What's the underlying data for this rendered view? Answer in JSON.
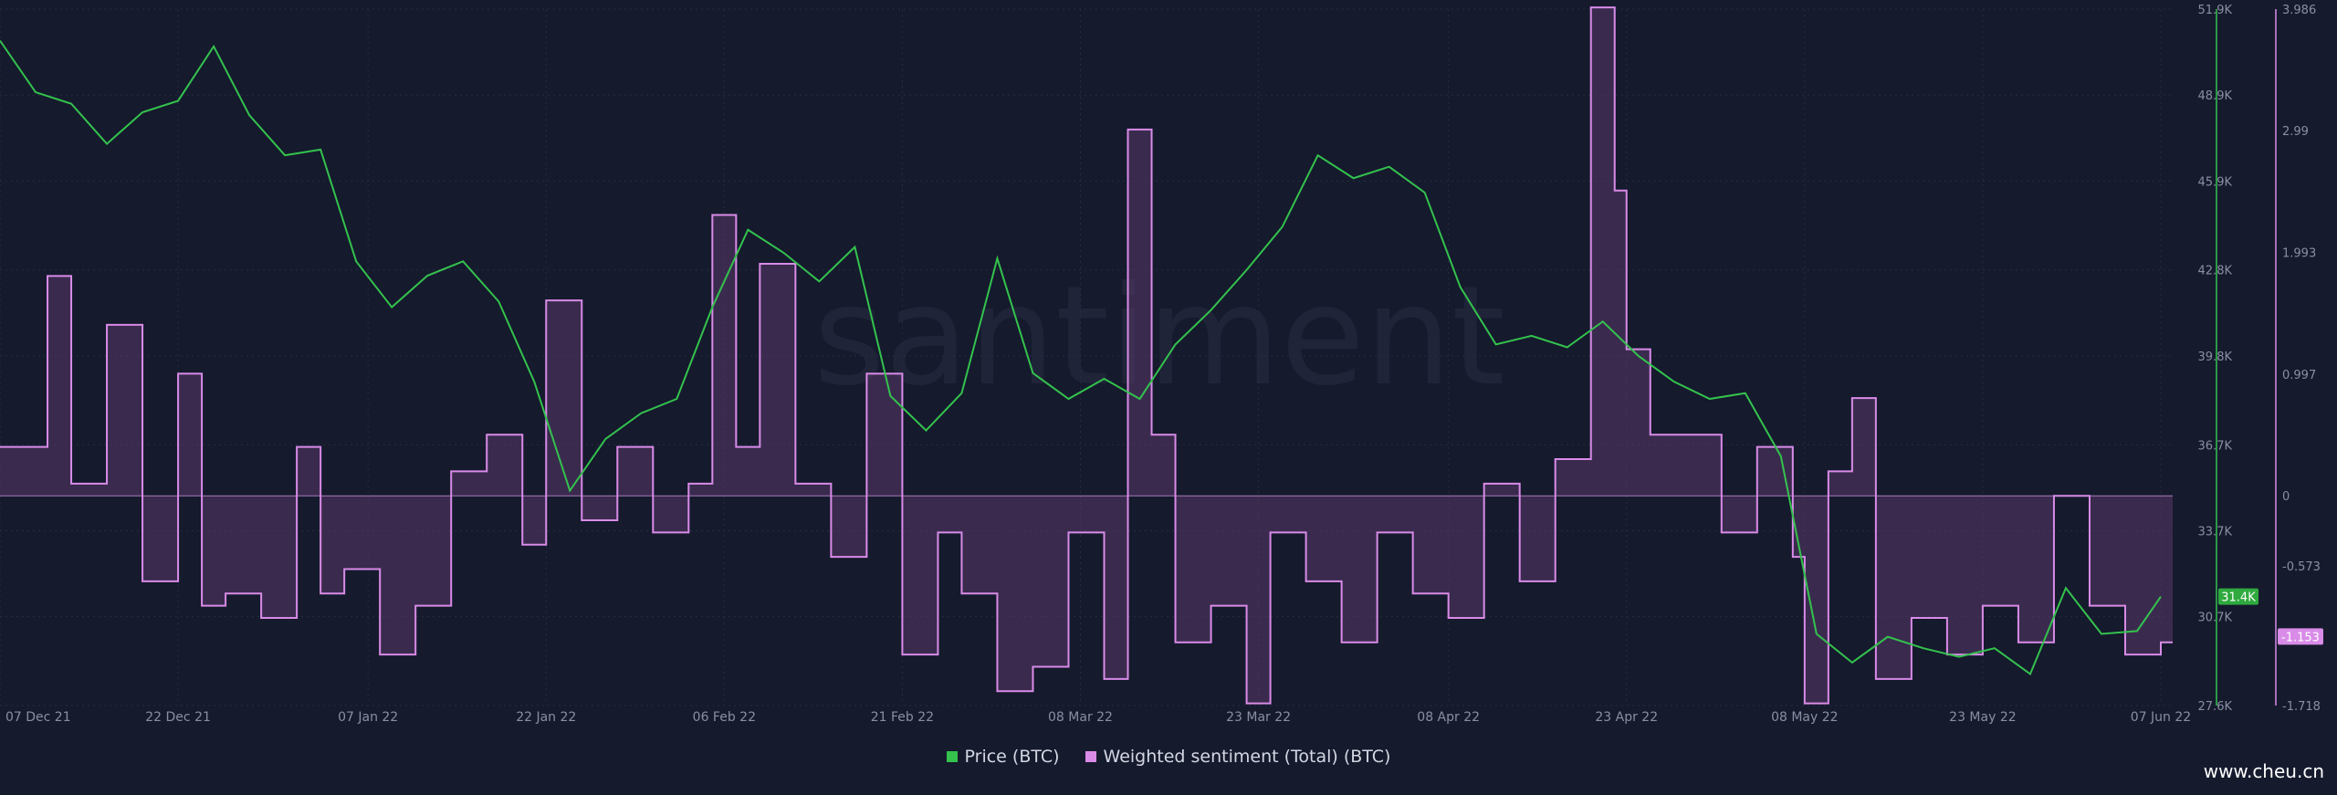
{
  "colors": {
    "price": "#34c24d",
    "sentiment": "#d98be8",
    "sentiment_fill": "#5a3a6a",
    "grid": "#262c42",
    "background": "#151a2d",
    "price_badge": "#2faa3e",
    "sentiment_badge": "#d98be8"
  },
  "watermark": "santiment",
  "site_mark": "www.cheu.cn",
  "chart_data": {
    "type": "line",
    "title": "",
    "x_ticks": [
      "07 Dec 21",
      "22 Dec 21",
      "07 Jan 22",
      "22 Jan 22",
      "06 Feb 22",
      "21 Feb 22",
      "08 Mar 22",
      "23 Mar 22",
      "08 Apr 22",
      "23 Apr 22",
      "08 May 22",
      "23 May 22",
      "07 Jun 22"
    ],
    "x_range": [
      "2021-12-07",
      "2022-06-08"
    ],
    "price_axis": {
      "ticks": [
        "51.9K",
        "48.9K",
        "45.9K",
        "42.8K",
        "39.8K",
        "36.7K",
        "33.7K",
        "30.7K",
        "27.6K"
      ],
      "range": [
        27600,
        51900
      ]
    },
    "sentiment_axis": {
      "ticks": [
        "3.986",
        "2.99",
        "1.993",
        "0.997",
        "0",
        "-0.573",
        "-1.153",
        "-1.718"
      ],
      "range": [
        -1.718,
        3.986
      ]
    },
    "grid": true,
    "legend_position": "bottom-center",
    "legend": [
      "Price (BTC)",
      "Weighted sentiment (Total) (BTC)"
    ],
    "current_price_label": "31.4K",
    "current_sentiment_label": "-1.153",
    "series": [
      {
        "name": "Price (BTC)",
        "axis": "price",
        "x": [
          "2021-12-07",
          "2021-12-10",
          "2021-12-13",
          "2021-12-16",
          "2021-12-19",
          "2021-12-22",
          "2021-12-25",
          "2021-12-28",
          "2021-12-31",
          "2022-01-03",
          "2022-01-06",
          "2022-01-09",
          "2022-01-12",
          "2022-01-15",
          "2022-01-18",
          "2022-01-21",
          "2022-01-24",
          "2022-01-27",
          "2022-01-30",
          "2022-02-02",
          "2022-02-05",
          "2022-02-08",
          "2022-02-11",
          "2022-02-14",
          "2022-02-17",
          "2022-02-20",
          "2022-02-23",
          "2022-02-26",
          "2022-03-01",
          "2022-03-04",
          "2022-03-07",
          "2022-03-10",
          "2022-03-13",
          "2022-03-16",
          "2022-03-19",
          "2022-03-22",
          "2022-03-25",
          "2022-03-28",
          "2022-03-31",
          "2022-04-03",
          "2022-04-06",
          "2022-04-09",
          "2022-04-12",
          "2022-04-15",
          "2022-04-18",
          "2022-04-21",
          "2022-04-24",
          "2022-04-27",
          "2022-04-30",
          "2022-05-03",
          "2022-05-06",
          "2022-05-09",
          "2022-05-12",
          "2022-05-15",
          "2022-05-18",
          "2022-05-21",
          "2022-05-24",
          "2022-05-27",
          "2022-05-30",
          "2022-06-02",
          "2022-06-05",
          "2022-06-07"
        ],
        "y": [
          50800,
          49000,
          48600,
          47200,
          48300,
          48700,
          50600,
          48200,
          46800,
          47000,
          43100,
          41500,
          42600,
          43100,
          41700,
          38900,
          35100,
          36900,
          37800,
          38300,
          41500,
          44200,
          43400,
          42400,
          43600,
          38400,
          37200,
          38500,
          43200,
          39200,
          38300,
          39000,
          38300,
          40200,
          41400,
          42800,
          44300,
          46800,
          46000,
          46400,
          45500,
          42200,
          40200,
          40500,
          40100,
          41000,
          39800,
          38900,
          38300,
          38500,
          36300,
          30100,
          29100,
          30000,
          29600,
          29300,
          29600,
          28700,
          31700,
          30100,
          30200,
          31400
        ]
      },
      {
        "name": "Weighted sentiment (Total) (BTC)",
        "axis": "sentiment",
        "x": [
          "2021-12-07",
          "2021-12-10",
          "2021-12-11",
          "2021-12-13",
          "2021-12-16",
          "2021-12-19",
          "2021-12-22",
          "2021-12-24",
          "2021-12-26",
          "2021-12-29",
          "2022-01-01",
          "2022-01-03",
          "2022-01-05",
          "2022-01-08",
          "2022-01-11",
          "2022-01-14",
          "2022-01-17",
          "2022-01-20",
          "2022-01-22",
          "2022-01-25",
          "2022-01-28",
          "2022-01-31",
          "2022-02-03",
          "2022-02-05",
          "2022-02-07",
          "2022-02-09",
          "2022-02-12",
          "2022-02-15",
          "2022-02-18",
          "2022-02-21",
          "2022-02-24",
          "2022-02-26",
          "2022-03-01",
          "2022-03-04",
          "2022-03-07",
          "2022-03-10",
          "2022-03-12",
          "2022-03-14",
          "2022-03-16",
          "2022-03-19",
          "2022-03-22",
          "2022-03-24",
          "2022-03-27",
          "2022-03-30",
          "2022-04-02",
          "2022-04-05",
          "2022-04-08",
          "2022-04-11",
          "2022-04-14",
          "2022-04-17",
          "2022-04-20",
          "2022-04-22",
          "2022-04-23",
          "2022-04-25",
          "2022-04-28",
          "2022-05-01",
          "2022-05-04",
          "2022-05-07",
          "2022-05-08",
          "2022-05-10",
          "2022-05-12",
          "2022-05-14",
          "2022-05-17",
          "2022-05-20",
          "2022-05-23",
          "2022-05-26",
          "2022-05-29",
          "2022-06-01",
          "2022-06-04",
          "2022-06-07"
        ],
        "y": [
          0.4,
          0.4,
          1.8,
          0.1,
          1.4,
          -0.7,
          1.0,
          -0.9,
          -0.8,
          -1.0,
          0.4,
          -0.8,
          -0.6,
          -1.3,
          -0.9,
          0.2,
          0.5,
          -0.4,
          1.6,
          -0.2,
          0.4,
          -0.3,
          0.1,
          2.3,
          0.4,
          1.9,
          0.1,
          -0.5,
          1.0,
          -1.3,
          -0.3,
          -0.8,
          -1.6,
          -1.4,
          -0.3,
          -1.5,
          3.0,
          0.5,
          -1.2,
          -0.9,
          -1.7,
          -0.3,
          -0.7,
          -1.2,
          -0.3,
          -0.8,
          -1.0,
          0.1,
          -0.7,
          0.3,
          4.0,
          2.5,
          1.2,
          0.5,
          0.5,
          -0.3,
          0.4,
          -0.5,
          -1.7,
          0.2,
          0.8,
          -1.5,
          -1.0,
          -1.3,
          -0.9,
          -1.2,
          0.0,
          -0.9,
          -1.3,
          -1.2
        ]
      }
    ]
  }
}
